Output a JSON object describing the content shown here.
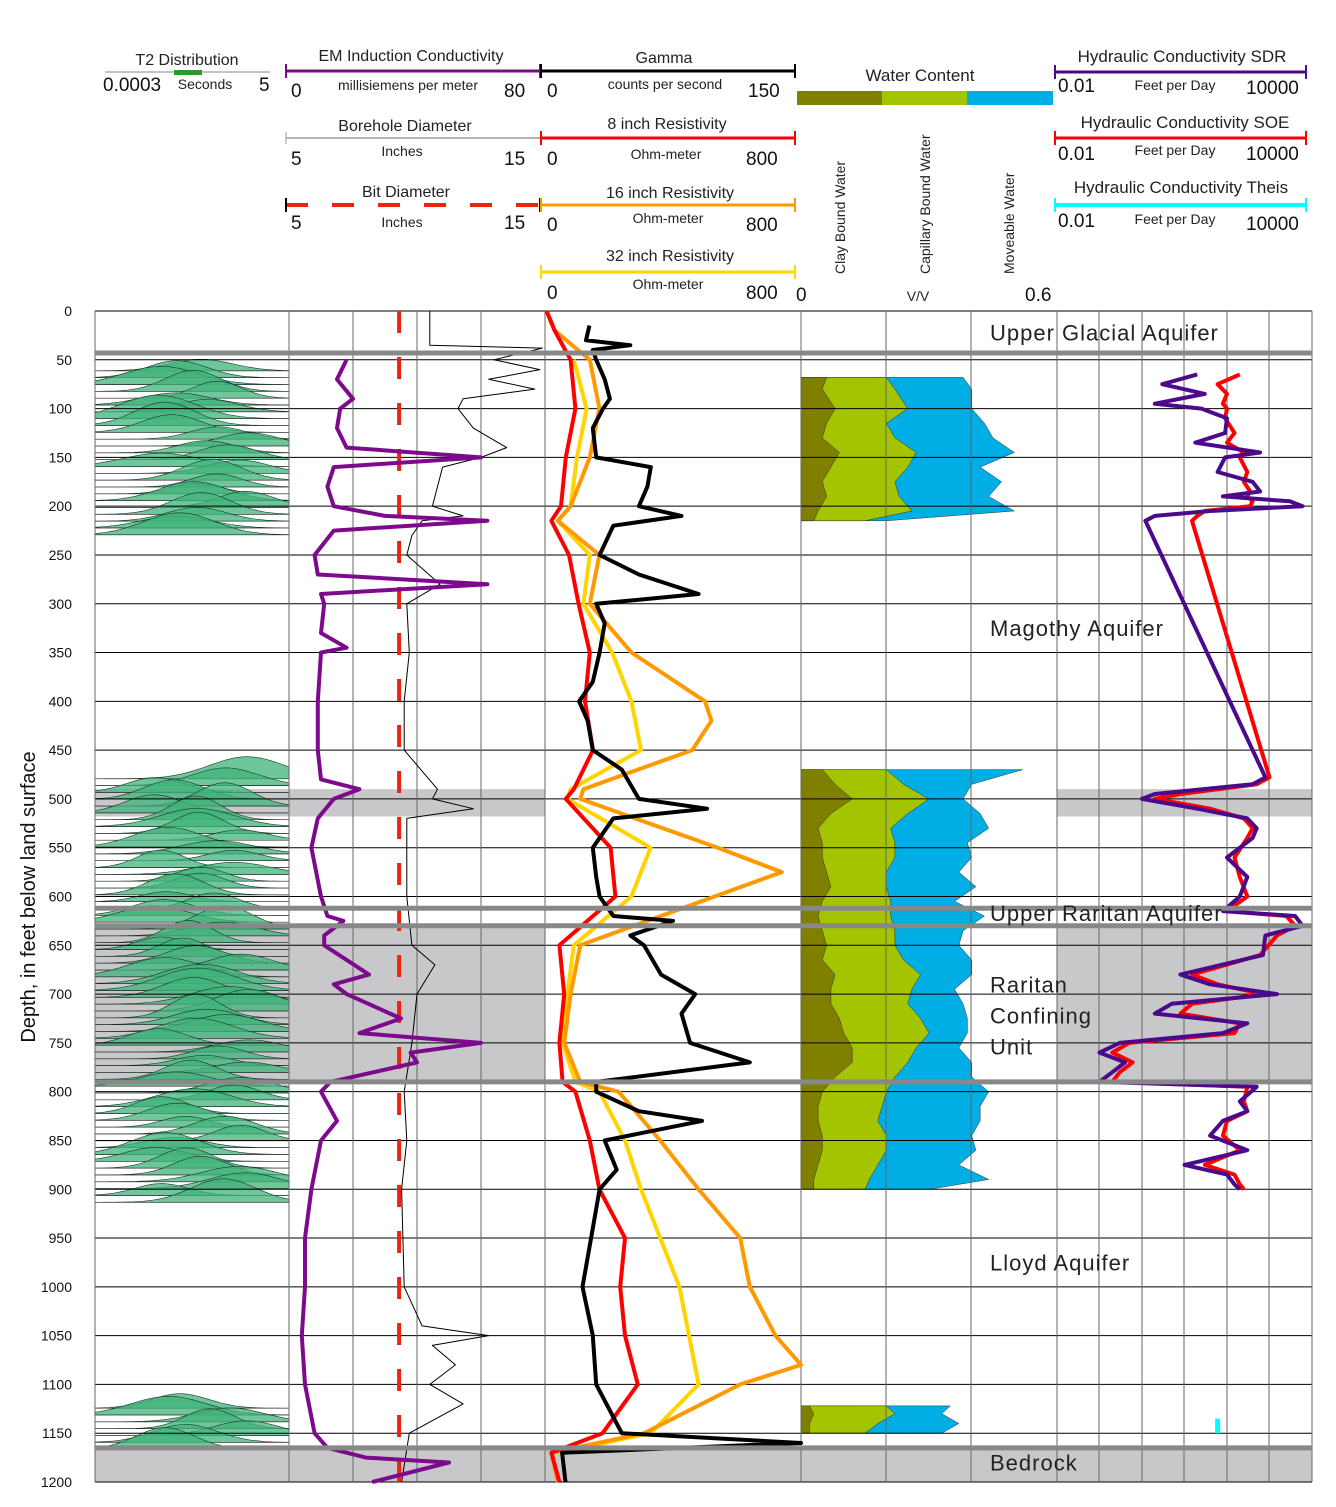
{
  "chart_data": {
    "type": "line",
    "ylabel": "Depth, in feet below land surface",
    "depth_range": [
      0,
      1200
    ],
    "depth_ticks": [
      0,
      50,
      100,
      150,
      200,
      250,
      300,
      350,
      400,
      450,
      500,
      550,
      600,
      650,
      700,
      750,
      800,
      850,
      900,
      950,
      1000,
      1050,
      1100,
      1150,
      1200
    ],
    "grid": true,
    "colors": {
      "em": "#7d0a8c",
      "gamma": "#000000",
      "borehole": "#000000",
      "bit": "#ee2211",
      "res8": "#ff0000",
      "res16": "#ff9900",
      "res32": "#ffd400",
      "clay": "#7f7f00",
      "capillary": "#a4c400",
      "moveable": "#00aee6",
      "k_sdr": "#4b0a8c",
      "k_soe": "#ff0000",
      "k_theis": "#00ffff",
      "t2": "#3fb37a",
      "band": "#c8c8ca",
      "boundary": "#888888"
    },
    "legends": {
      "t2": {
        "title": "T2 Distribution",
        "unit": "Seconds",
        "min": "0.0003",
        "max": "5"
      },
      "em": {
        "title": "EM Induction Conductivity",
        "unit": "millisiemens per meter",
        "min": "0",
        "max": "80"
      },
      "gamma": {
        "title": "Gamma",
        "unit": "counts per second",
        "min": "0",
        "max": "150"
      },
      "borehole": {
        "title": "Borehole Diameter",
        "unit": "Inches",
        "min": "5",
        "max": "15"
      },
      "res8": {
        "title": "8 inch Resistivity",
        "unit": "Ohm-meter",
        "min": "0",
        "max": "800"
      },
      "bit": {
        "title": "Bit Diameter",
        "unit": "Inches",
        "min": "5",
        "max": "15"
      },
      "res16": {
        "title": "16 inch Resistivity",
        "unit": "Ohm-meter",
        "min": "0",
        "max": "800"
      },
      "res32": {
        "title": "32 inch Resistivity",
        "unit": "Ohm-meter",
        "min": "0",
        "max": "800"
      },
      "water": {
        "title": "Water Content",
        "clay": "Clay Bound Water",
        "capillary": "Capillary Bound Water",
        "moveable": "Moveable Water",
        "unit": "V/V",
        "min": "0",
        "max": "0.6"
      },
      "k_sdr": {
        "title": "Hydraulic Conductivity SDR",
        "unit": "Feet per Day",
        "min": "0.01",
        "max": "10000"
      },
      "k_soe": {
        "title": "Hydraulic Conductivity SOE",
        "unit": "Feet per Day",
        "min": "0.01",
        "max": "10000"
      },
      "k_theis": {
        "title": "Hydraulic Conductivity Theis",
        "unit": "Feet per Day",
        "min": "0.01",
        "max": "10000"
      }
    },
    "units": [
      {
        "label": [
          "Upper Glacial Aquifer"
        ],
        "label_depth": 22
      },
      {
        "label": [
          "Magothy Aquifer"
        ],
        "label_depth": 325
      },
      {
        "label": [
          "Upper Raritan Aquifer"
        ],
        "label_depth": 617
      },
      {
        "label": [
          "Raritan",
          "Confining",
          "Unit"
        ],
        "label_depth": 690
      },
      {
        "label": [
          "Lloyd Aquifer"
        ],
        "label_depth": 975
      },
      {
        "label": [
          "Bedrock"
        ],
        "label_depth": 1180
      }
    ],
    "boundaries": [
      43,
      612,
      630,
      790,
      1165
    ],
    "shaded_intervals": [
      [
        490,
        518
      ],
      [
        630,
        790
      ],
      [
        1165,
        1200
      ]
    ],
    "t2_intervals": [
      [
        47,
        215
      ],
      [
        465,
        900
      ],
      [
        1110,
        1155
      ]
    ],
    "bit_diameter": {
      "depth": [
        0,
        1200
      ],
      "value": [
        9.3,
        9.3
      ]
    },
    "em": {
      "depth": [
        50,
        70,
        90,
        100,
        120,
        140,
        150,
        160,
        180,
        200,
        210,
        215,
        225,
        250,
        270,
        280,
        290,
        300,
        330,
        345,
        350,
        400,
        450,
        480,
        490,
        500,
        520,
        550,
        600,
        620,
        625,
        640,
        650,
        680,
        690,
        700,
        725,
        740,
        750,
        760,
        770,
        790,
        800,
        830,
        850,
        900,
        950,
        1000,
        1050,
        1100,
        1150,
        1165,
        1175,
        1180,
        1200
      ],
      "value": [
        18,
        15,
        20,
        16,
        15,
        18,
        60,
        14,
        12,
        14,
        30,
        62,
        14,
        8,
        9,
        62,
        10,
        11,
        10,
        18,
        10,
        9,
        9,
        10,
        22,
        14,
        9,
        7,
        10,
        12,
        17,
        11,
        11,
        25,
        14,
        18,
        35,
        22,
        60,
        38,
        40,
        13,
        10,
        15,
        10,
        7,
        5,
        5,
        4,
        5,
        8,
        12,
        24,
        50,
        26
      ]
    },
    "borehole": {
      "depth": [
        0,
        35,
        38,
        50,
        60,
        70,
        80,
        90,
        100,
        120,
        140,
        150,
        160,
        180,
        200,
        210,
        215,
        230,
        250,
        280,
        300,
        350,
        400,
        450,
        490,
        500,
        510,
        520,
        550,
        600,
        650,
        670,
        700,
        750,
        800,
        850,
        900,
        1000,
        1040,
        1050,
        1060,
        1080,
        1100,
        1120,
        1150,
        1200
      ],
      "value": [
        10.5,
        10.5,
        14.9,
        13,
        14.8,
        12.8,
        14.6,
        11.8,
        11.6,
        12.2,
        13.5,
        12.5,
        11,
        10.8,
        10.6,
        11.8,
        10.2,
        9.8,
        9.6,
        10.9,
        9.6,
        9.7,
        9.5,
        9.5,
        10.8,
        10.6,
        12.2,
        9.6,
        9.6,
        9.6,
        9.8,
        10.7,
        10,
        9.8,
        9.5,
        9.6,
        9.4,
        9.5,
        10.2,
        12.8,
        10.6,
        11.5,
        10.5,
        11.8,
        9.7,
        9.4
      ]
    },
    "gamma": {
      "depth": [
        15,
        30,
        35,
        40,
        50,
        70,
        90,
        100,
        120,
        150,
        160,
        180,
        200,
        210,
        220,
        250,
        270,
        290,
        300,
        320,
        350,
        380,
        400,
        420,
        450,
        470,
        500,
        510,
        520,
        550,
        580,
        600,
        620,
        625,
        640,
        650,
        680,
        700,
        720,
        750,
        770,
        790,
        800,
        820,
        830,
        850,
        880,
        900,
        950,
        1000,
        1050,
        1100,
        1150,
        1160,
        1170,
        1200
      ],
      "value": [
        26,
        24,
        50,
        28,
        30,
        35,
        38,
        34,
        28,
        30,
        62,
        60,
        55,
        80,
        40,
        32,
        55,
        90,
        30,
        35,
        32,
        28,
        20,
        25,
        28,
        45,
        55,
        95,
        40,
        28,
        30,
        32,
        40,
        75,
        50,
        58,
        68,
        88,
        80,
        85,
        120,
        30,
        30,
        55,
        92,
        35,
        42,
        32,
        27,
        22,
        28,
        30,
        45,
        150,
        10,
        12
      ]
    },
    "res8": {
      "depth": [
        0,
        20,
        50,
        100,
        150,
        200,
        215,
        250,
        300,
        350,
        400,
        450,
        490,
        500,
        550,
        600,
        650,
        700,
        750,
        790,
        800,
        850,
        900,
        950,
        1000,
        1050,
        1100,
        1150,
        1170,
        1200
      ],
      "value": [
        5,
        30,
        80,
        95,
        65,
        50,
        20,
        75,
        105,
        140,
        125,
        150,
        90,
        65,
        205,
        220,
        45,
        60,
        45,
        55,
        95,
        140,
        170,
        250,
        235,
        250,
        290,
        180,
        20,
        45
      ]
    },
    "res16": {
      "depth": [
        0,
        20,
        50,
        100,
        150,
        200,
        215,
        250,
        300,
        350,
        400,
        420,
        450,
        490,
        500,
        550,
        575,
        600,
        650,
        700,
        750,
        790,
        800,
        850,
        900,
        950,
        1000,
        1050,
        1080,
        1100,
        1150,
        1170,
        1200
      ],
      "value": [
        5,
        30,
        140,
        170,
        140,
        80,
        40,
        170,
        140,
        270,
        500,
        520,
        460,
        120,
        110,
        540,
        740,
        530,
        110,
        80,
        60,
        110,
        230,
        360,
        480,
        610,
        640,
        720,
        800,
        610,
        310,
        20,
        40
      ]
    },
    "res32": {
      "depth": [
        50,
        100,
        150,
        200,
        215,
        250,
        300,
        350,
        400,
        450,
        490,
        500,
        550,
        600,
        650,
        700,
        750,
        790,
        800,
        850,
        900,
        950,
        1000,
        1050,
        1100,
        1150,
        1170
      ],
      "value": [
        90,
        130,
        100,
        80,
        40,
        140,
        120,
        210,
        270,
        300,
        80,
        70,
        330,
        270,
        90,
        70,
        55,
        95,
        170,
        250,
        300,
        360,
        420,
        450,
        480,
        330,
        40
      ]
    },
    "water_content": {
      "intervals": [
        {
          "depth": [
            68,
            80,
            100,
            115,
            130,
            145,
            160,
            175,
            190,
            205,
            215
          ],
          "clay": [
            0.06,
            0.05,
            0.08,
            0.06,
            0.05,
            0.09,
            0.07,
            0.05,
            0.06,
            0.04,
            0.03
          ],
          "capillary_cum": [
            0.2,
            0.22,
            0.25,
            0.2,
            0.22,
            0.27,
            0.25,
            0.22,
            0.23,
            0.26,
            0.15
          ],
          "total": [
            0.38,
            0.4,
            0.4,
            0.43,
            0.45,
            0.5,
            0.42,
            0.47,
            0.44,
            0.5,
            0.2
          ]
        },
        {
          "depth": [
            470,
            485,
            500,
            515,
            530,
            545,
            560,
            575,
            590,
            605,
            620,
            635,
            650,
            665,
            680,
            695,
            710,
            725,
            740,
            755,
            770,
            785,
            800,
            815,
            830,
            845,
            860,
            875,
            890,
            900
          ],
          "clay": [
            0.05,
            0.08,
            0.12,
            0.07,
            0.04,
            0.05,
            0.05,
            0.06,
            0.07,
            0.05,
            0.04,
            0.05,
            0.06,
            0.05,
            0.08,
            0.07,
            0.07,
            0.09,
            0.1,
            0.12,
            0.12,
            0.08,
            0.05,
            0.04,
            0.04,
            0.05,
            0.05,
            0.04,
            0.03,
            0.03
          ],
          "capillary_cum": [
            0.2,
            0.24,
            0.3,
            0.25,
            0.21,
            0.22,
            0.22,
            0.2,
            0.2,
            0.21,
            0.21,
            0.22,
            0.22,
            0.24,
            0.28,
            0.26,
            0.25,
            0.28,
            0.3,
            0.27,
            0.25,
            0.22,
            0.2,
            0.19,
            0.18,
            0.2,
            0.2,
            0.18,
            0.16,
            0.15
          ],
          "total": [
            0.52,
            0.4,
            0.38,
            0.42,
            0.44,
            0.39,
            0.4,
            0.37,
            0.41,
            0.36,
            0.43,
            0.38,
            0.37,
            0.4,
            0.4,
            0.36,
            0.38,
            0.39,
            0.39,
            0.37,
            0.4,
            0.4,
            0.44,
            0.42,
            0.42,
            0.4,
            0.41,
            0.37,
            0.44,
            0.3
          ]
        },
        {
          "depth": [
            1122,
            1130,
            1140,
            1150
          ],
          "clay": [
            0.02,
            0.03,
            0.02,
            0.02
          ],
          "capillary_cum": [
            0.2,
            0.22,
            0.18,
            0.15
          ],
          "total": [
            0.35,
            0.33,
            0.37,
            0.33
          ]
        }
      ]
    },
    "k_sdr": {
      "depth": [
        65,
        75,
        85,
        95,
        100,
        110,
        125,
        135,
        145,
        150,
        165,
        175,
        185,
        190,
        195,
        200,
        205,
        210,
        215,
        478,
        485,
        495,
        500,
        510,
        520,
        530,
        540,
        560,
        580,
        600,
        615,
        620,
        630,
        640,
        660,
        680,
        690,
        700,
        710,
        720,
        730,
        740,
        750,
        760,
        770,
        780,
        790,
        795,
        810,
        820,
        830,
        845,
        860,
        875,
        885,
        895,
        900
      ],
      "value": [
        20,
        3,
        30,
        2,
        25,
        100,
        90,
        18,
        600,
        90,
        60,
        400,
        600,
        80,
        3000,
        6000,
        40,
        2,
        1.2,
        800,
        400,
        2,
        1,
        20,
        300,
        500,
        400,
        100,
        300,
        200,
        80,
        4000,
        6000,
        800,
        700,
        8,
        40,
        1500,
        5,
        2,
        300,
        80,
        0.3,
        0.1,
        0.4,
        0.2,
        0.1,
        500,
        200,
        300,
        80,
        40,
        300,
        10,
        100,
        150,
        200
      ]
    },
    "k_soe": {
      "depth": [
        65,
        75,
        85,
        95,
        100,
        110,
        125,
        135,
        145,
        150,
        165,
        175,
        185,
        190,
        195,
        200,
        205,
        210,
        215,
        478,
        485,
        495,
        500,
        510,
        520,
        530,
        540,
        560,
        580,
        600,
        615,
        620,
        630,
        640,
        660,
        680,
        690,
        700,
        710,
        720,
        730,
        740,
        750,
        760,
        770,
        780,
        790,
        795,
        810,
        820,
        830,
        845,
        860,
        875,
        885,
        895,
        900
      ],
      "value": [
        200,
        60,
        100,
        80,
        100,
        90,
        150,
        100,
        250,
        200,
        300,
        250,
        350,
        300,
        400,
        350,
        30,
        20,
        15,
        1000,
        500,
        8,
        2,
        40,
        250,
        400,
        300,
        150,
        200,
        300,
        100,
        2500,
        4000,
        1500,
        600,
        15,
        60,
        700,
        15,
        8,
        200,
        150,
        0.5,
        0.2,
        0.6,
        0.3,
        0.2,
        300,
        250,
        300,
        100,
        80,
        200,
        30,
        150,
        200,
        250
      ]
    },
    "k_theis": {
      "depth": [
        1135,
        1140,
        1145,
        1150
      ],
      "value": [
        60,
        60,
        60,
        60
      ]
    }
  }
}
